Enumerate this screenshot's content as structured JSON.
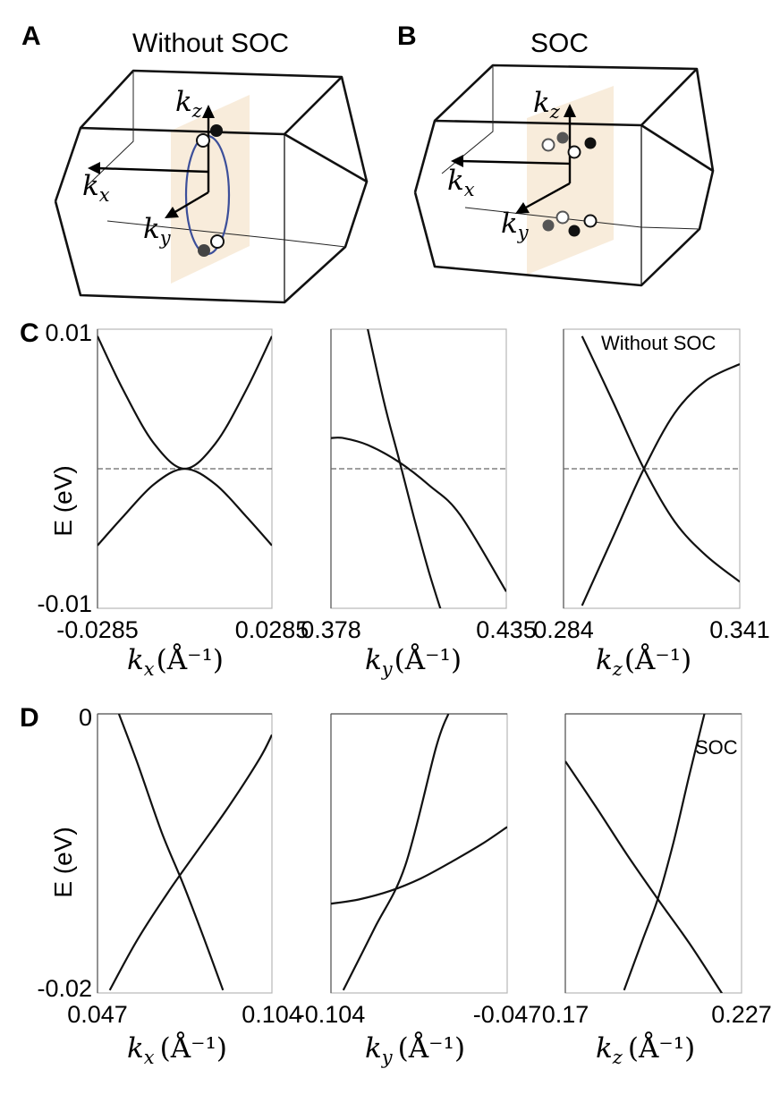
{
  "panels": {
    "A": {
      "letter": "A",
      "title": "Without SOC"
    },
    "B": {
      "letter": "B",
      "title": "SOC"
    },
    "C": {
      "letter": "C",
      "tag": "Without SOC"
    },
    "D": {
      "letter": "D",
      "tag": "SOC"
    }
  },
  "bz_axes": {
    "kx": "k",
    "ky": "k",
    "kz": "k",
    "sub_x": "x",
    "sub_y": "y",
    "sub_z": "z"
  },
  "ylabel": "E (eV)",
  "xlabels": [
    {
      "k": "k",
      "sub": "x",
      "unit": "(Å⁻¹)"
    },
    {
      "k": "k",
      "sub": "y",
      "unit": "(Å⁻¹)"
    },
    {
      "k": "k",
      "sub": "z",
      "unit": "(Å⁻¹)"
    }
  ],
  "colors": {
    "plane": "#f6e6cf",
    "nodal_loop": "#3c4f9a",
    "curve": "#111111"
  },
  "chart_data": [
    {
      "id": "C1",
      "type": "line",
      "xlim": [
        -0.0285,
        0.0285
      ],
      "ylim": [
        -0.01,
        0.01
      ],
      "xticks": [
        "-0.0285",
        "0.0285"
      ],
      "yticks": [
        "0.01",
        "-0.01"
      ],
      "zero_line": true,
      "series": [
        {
          "x": [
            -0.0285,
            -0.02,
            -0.01,
            0.0,
            0.01,
            0.02,
            0.0285
          ],
          "y": [
            0.0095,
            0.0056,
            0.0018,
            0.0,
            0.0018,
            0.0056,
            0.0095
          ]
        },
        {
          "x": [
            -0.0285,
            -0.02,
            -0.01,
            0.0,
            0.01,
            0.02,
            0.0285
          ],
          "y": [
            -0.0055,
            -0.0034,
            -0.0011,
            0.0,
            -0.0011,
            -0.0034,
            -0.0055
          ]
        }
      ]
    },
    {
      "id": "C2",
      "type": "line",
      "xlim": [
        0.378,
        0.435
      ],
      "ylim": [
        -0.01,
        0.01
      ],
      "xticks": [
        "0.378",
        "0.435"
      ],
      "yticks": [],
      "zero_line": true,
      "series": [
        {
          "x": [
            0.378,
            0.382,
            0.39,
            0.4,
            0.41,
            0.42,
            0.435
          ],
          "y": [
            0.0022,
            0.0022,
            0.0017,
            0.0005,
            -0.0012,
            -0.0033,
            -0.0088
          ]
        },
        {
          "x": [
            0.388,
            0.395,
            0.4,
            0.405,
            0.41,
            0.415
          ],
          "y": [
            0.012,
            0.005,
            0.0008,
            -0.0035,
            -0.0075,
            -0.011
          ]
        }
      ]
    },
    {
      "id": "C3",
      "type": "line",
      "xlim": [
        0.284,
        0.341
      ],
      "ylim": [
        -0.01,
        0.01
      ],
      "xticks": [
        "0.284",
        "0.341"
      ],
      "yticks": [],
      "zero_line": true,
      "series": [
        {
          "x": [
            0.29,
            0.3,
            0.31,
            0.32,
            0.33,
            0.341
          ],
          "y": [
            0.0095,
            0.0048,
            0.0,
            -0.0038,
            -0.0062,
            -0.0081
          ]
        },
        {
          "x": [
            0.29,
            0.3,
            0.31,
            0.32,
            0.33,
            0.341
          ],
          "y": [
            -0.0098,
            -0.0049,
            0.0,
            0.004,
            0.0063,
            0.0075
          ]
        }
      ]
    },
    {
      "id": "D1",
      "type": "line",
      "xlim": [
        0.047,
        0.104
      ],
      "ylim": [
        -0.02,
        0
      ],
      "xticks": [
        "0.047",
        "0.104"
      ],
      "yticks": [
        "0",
        "-0.02"
      ],
      "zero_line": false,
      "series": [
        {
          "x": [
            0.054,
            0.06,
            0.068,
            0.075,
            0.082,
            0.088
          ],
          "y": [
            0.0,
            -0.0035,
            -0.0085,
            -0.0122,
            -0.0162,
            -0.0198
          ]
        },
        {
          "x": [
            0.051,
            0.06,
            0.07,
            0.08,
            0.09,
            0.1,
            0.104
          ],
          "y": [
            -0.0198,
            -0.0162,
            -0.0128,
            -0.0097,
            -0.0066,
            -0.0032,
            -0.0015
          ]
        }
      ]
    },
    {
      "id": "D2",
      "type": "line",
      "xlim": [
        -0.104,
        -0.047
      ],
      "ylim": [
        -0.02,
        0
      ],
      "xticks": [
        "-0.104",
        "-0.047"
      ],
      "yticks": [],
      "zero_line": false,
      "series": [
        {
          "x": [
            -0.104,
            -0.095,
            -0.085,
            -0.075,
            -0.065,
            -0.055,
            -0.047
          ],
          "y": [
            -0.0136,
            -0.0133,
            -0.0127,
            -0.0118,
            -0.0106,
            -0.0093,
            -0.0081
          ]
        },
        {
          "x": [
            -0.1,
            -0.09,
            -0.08,
            -0.07,
            -0.066
          ],
          "y": [
            -0.0198,
            -0.0154,
            -0.0109,
            -0.0024,
            0.0
          ]
        }
      ]
    },
    {
      "id": "D3",
      "type": "line",
      "xlim": [
        0.17,
        0.227
      ],
      "ylim": [
        -0.02,
        0
      ],
      "xticks": [
        "0.17",
        "0.227"
      ],
      "yticks": [],
      "zero_line": false,
      "series": [
        {
          "x": [
            0.17,
            0.18,
            0.19,
            0.2,
            0.21,
            0.22,
            0.22
          ],
          "y": [
            -0.0034,
            -0.0067,
            -0.0101,
            -0.0133,
            -0.0164,
            -0.0198,
            -0.0198
          ]
        },
        {
          "x": [
            0.189,
            0.195,
            0.2,
            0.205,
            0.21,
            0.215
          ],
          "y": [
            -0.0198,
            -0.0162,
            -0.0132,
            -0.0092,
            -0.0045,
            0.0
          ]
        }
      ]
    }
  ]
}
